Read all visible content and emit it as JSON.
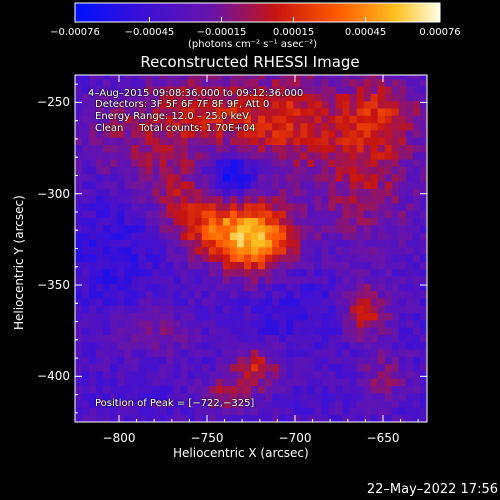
{
  "chart_data": {
    "type": "heatmap",
    "title": "Reconstructed RHESSI Image",
    "xlabel": "Heliocentric X (arcsec)",
    "ylabel": "Heliocentric Y (arcsec)",
    "xlim": [
      -825,
      -625
    ],
    "ylim": [
      -425,
      -235
    ],
    "x_ticks": [
      -800,
      -750,
      -700,
      -650
    ],
    "x_tick_labels": [
      "−800",
      "−750",
      "−700",
      "−650"
    ],
    "y_ticks": [
      -400,
      -350,
      -300,
      -250
    ],
    "y_tick_labels": [
      "−400",
      "−350",
      "−300",
      "−250"
    ],
    "colorbar": {
      "range": [
        -0.00076,
        0.00076
      ],
      "ticks": [
        -0.00076,
        -0.00045,
        -0.00015,
        0.00015,
        0.00045,
        0.00076
      ],
      "tick_labels": [
        "−0.00076",
        "−0.00045",
        "−0.00015",
        "0.00015",
        "0.00045",
        "0.00076"
      ],
      "units": "(photons cm⁻² s⁻¹ asec⁻²)"
    },
    "annotations": {
      "time_range": "4–Aug–2015 09:08:36.000 to 09:12:36.000",
      "detectors": "Detectors: 3F 5F 6F 7F 8F 9F, Att 0",
      "energy_range": "Energy Range: 12.0 – 25.0 keV",
      "clean": "Clean     Total counts: 1.70E+04",
      "peak": "Position of Peak = [−722,−325]"
    },
    "peak_position": [
      -722,
      -325
    ],
    "colormap": "rhessi-hot (blue→purple→red→orange→yellow→white)"
  },
  "footer": {
    "timestamp": "22–May–2022 17:56"
  }
}
